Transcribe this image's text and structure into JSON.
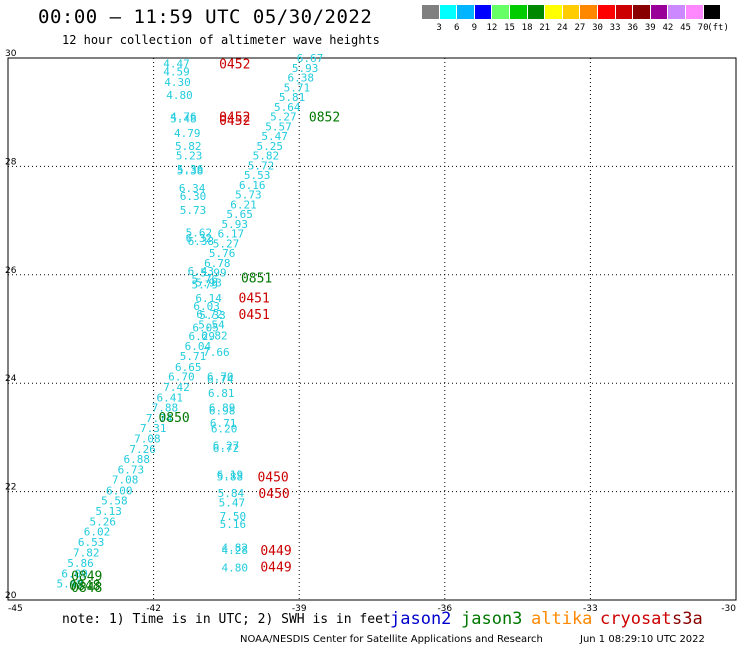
{
  "header": {
    "title": "00:00 – 11:59 UTC 05/30/2022",
    "subtitle": "12 hour collection of altimeter wave heights"
  },
  "legend": {
    "unit_label": "(ft)",
    "bins": [
      {
        "label": "3",
        "color": "#808080"
      },
      {
        "label": "6",
        "color": "#00ffff"
      },
      {
        "label": "9",
        "color": "#00b4ff"
      },
      {
        "label": "12",
        "color": "#0000ff"
      },
      {
        "label": "15",
        "color": "#66ff66"
      },
      {
        "label": "18",
        "color": "#00cc00"
      },
      {
        "label": "21",
        "color": "#008800"
      },
      {
        "label": "24",
        "color": "#ffff00"
      },
      {
        "label": "27",
        "color": "#ffcc00"
      },
      {
        "label": "30",
        "color": "#ff8800"
      },
      {
        "label": "33",
        "color": "#ff0000"
      },
      {
        "label": "36",
        "color": "#cc0000"
      },
      {
        "label": "39",
        "color": "#880000"
      },
      {
        "label": "42",
        "color": "#990099"
      },
      {
        "label": "45",
        "color": "#cc88ff"
      },
      {
        "label": "70",
        "color": "#ff88ff"
      },
      {
        "label": "",
        "color": "#000000"
      }
    ]
  },
  "map": {
    "lon_range": [
      -45,
      -30
    ],
    "lat_range": [
      20,
      30
    ],
    "lon_ticks": [
      "-45",
      "-42",
      "-39",
      "-36",
      "-33",
      "-30"
    ],
    "lat_ticks": [
      "20",
      "22",
      "24",
      "26",
      "28",
      "30"
    ],
    "grid": true
  },
  "colors": {
    "swh": "#22ccdd",
    "jason2": "#0000cc",
    "jason3": "#007700",
    "altika": "#ff8800",
    "cryosat": "#cc0000",
    "s3a": "#880000"
  },
  "swh_labels": [
    {
      "v": "4.47",
      "lon": -41.8,
      "lat": 29.9
    },
    {
      "v": "4.59",
      "lon": -41.8,
      "lat": 29.75
    },
    {
      "v": "4.30",
      "lon": -41.78,
      "lat": 29.56
    },
    {
      "v": "4.80",
      "lon": -41.74,
      "lat": 29.32
    },
    {
      "v": "4.76",
      "lon": -41.66,
      "lat": 28.92
    },
    {
      "v": "5.48",
      "lon": -41.66,
      "lat": 28.88
    },
    {
      "v": "4.79",
      "lon": -41.58,
      "lat": 28.62
    },
    {
      "v": "5.82",
      "lon": -41.56,
      "lat": 28.38
    },
    {
      "v": "5.23",
      "lon": -41.54,
      "lat": 28.2
    },
    {
      "v": "5.36",
      "lon": -41.52,
      "lat": 27.95
    },
    {
      "v": "5.38",
      "lon": -41.52,
      "lat": 27.92
    },
    {
      "v": "6.34",
      "lon": -41.48,
      "lat": 27.6
    },
    {
      "v": "6.30",
      "lon": -41.46,
      "lat": 27.45
    },
    {
      "v": "5.73",
      "lon": -41.46,
      "lat": 27.2
    },
    {
      "v": "5.62",
      "lon": -41.34,
      "lat": 26.78
    },
    {
      "v": "6.32",
      "lon": -41.34,
      "lat": 26.68
    },
    {
      "v": "6.38",
      "lon": -41.3,
      "lat": 26.62
    },
    {
      "v": "6.43",
      "lon": -41.3,
      "lat": 26.07
    },
    {
      "v": "5.76",
      "lon": -41.22,
      "lat": 25.92
    },
    {
      "v": "5.79",
      "lon": -41.22,
      "lat": 25.82
    },
    {
      "v": "6.14",
      "lon": -41.14,
      "lat": 25.57
    },
    {
      "v": "6.03",
      "lon": -41.18,
      "lat": 25.42
    },
    {
      "v": "6.72",
      "lon": -41.12,
      "lat": 25.28
    },
    {
      "v": "6.05",
      "lon": -41.2,
      "lat": 25.03
    },
    {
      "v": "6.29",
      "lon": -41.28,
      "lat": 24.87
    },
    {
      "v": "6.04",
      "lon": -41.36,
      "lat": 24.69
    },
    {
      "v": "5.71",
      "lon": -41.46,
      "lat": 24.5
    },
    {
      "v": "6.65",
      "lon": -41.56,
      "lat": 24.3
    },
    {
      "v": "6.70",
      "lon": -41.7,
      "lat": 24.12
    },
    {
      "v": "7.42",
      "lon": -41.8,
      "lat": 23.93
    },
    {
      "v": "6.41",
      "lon": -41.94,
      "lat": 23.74
    },
    {
      "v": "7.88",
      "lon": -42.04,
      "lat": 23.55
    },
    {
      "v": "7.74",
      "lon": -42.16,
      "lat": 23.36
    },
    {
      "v": "7.31",
      "lon": -42.28,
      "lat": 23.17
    },
    {
      "v": "7.08",
      "lon": -42.4,
      "lat": 22.98
    },
    {
      "v": "7.26",
      "lon": -42.5,
      "lat": 22.79
    },
    {
      "v": "6.88",
      "lon": -42.62,
      "lat": 22.6
    },
    {
      "v": "6.73",
      "lon": -42.74,
      "lat": 22.41
    },
    {
      "v": "7.08",
      "lon": -42.86,
      "lat": 22.22
    },
    {
      "v": "6.00",
      "lon": -42.98,
      "lat": 22.02
    },
    {
      "v": "5.58",
      "lon": -43.08,
      "lat": 21.84
    },
    {
      "v": "5.13",
      "lon": -43.2,
      "lat": 21.64
    },
    {
      "v": "5.26",
      "lon": -43.32,
      "lat": 21.45
    },
    {
      "v": "6.02",
      "lon": -43.44,
      "lat": 21.26
    },
    {
      "v": "6.53",
      "lon": -43.56,
      "lat": 21.07
    },
    {
      "v": "7.82",
      "lon": -43.66,
      "lat": 20.88
    },
    {
      "v": "5.86",
      "lon": -43.78,
      "lat": 20.68
    },
    {
      "v": "6.09",
      "lon": -43.9,
      "lat": 20.49
    },
    {
      "v": "5.48",
      "lon": -44.0,
      "lat": 20.3
    },
    {
      "v": "6.67",
      "lon": -39.05,
      "lat": 30.0
    },
    {
      "v": "5.93",
      "lon": -39.15,
      "lat": 29.82
    },
    {
      "v": "6.38",
      "lon": -39.24,
      "lat": 29.64
    },
    {
      "v": "5.71",
      "lon": -39.32,
      "lat": 29.46
    },
    {
      "v": "5.81",
      "lon": -39.42,
      "lat": 29.28
    },
    {
      "v": "5.64",
      "lon": -39.52,
      "lat": 29.1
    },
    {
      "v": "5.27",
      "lon": -39.6,
      "lat": 28.92
    },
    {
      "v": "5.57",
      "lon": -39.7,
      "lat": 28.74
    },
    {
      "v": "5.47",
      "lon": -39.78,
      "lat": 28.56
    },
    {
      "v": "5.25",
      "lon": -39.88,
      "lat": 28.38
    },
    {
      "v": "5.82",
      "lon": -39.96,
      "lat": 28.2
    },
    {
      "v": "5.72",
      "lon": -40.06,
      "lat": 28.02
    },
    {
      "v": "5.53",
      "lon": -40.14,
      "lat": 27.84
    },
    {
      "v": "6.16",
      "lon": -40.24,
      "lat": 27.66
    },
    {
      "v": "5.73",
      "lon": -40.32,
      "lat": 27.48
    },
    {
      "v": "6.21",
      "lon": -40.42,
      "lat": 27.3
    },
    {
      "v": "5.65",
      "lon": -40.5,
      "lat": 27.12
    },
    {
      "v": "5.93",
      "lon": -40.6,
      "lat": 26.94
    },
    {
      "v": "6.17",
      "lon": -40.68,
      "lat": 26.76
    },
    {
      "v": "5.27",
      "lon": -40.78,
      "lat": 26.58
    },
    {
      "v": "5.76",
      "lon": -40.86,
      "lat": 26.4
    },
    {
      "v": "6.78",
      "lon": -40.96,
      "lat": 26.22
    },
    {
      "v": "5.99",
      "lon": -41.04,
      "lat": 26.04
    },
    {
      "v": "5.93",
      "lon": -41.14,
      "lat": 25.86
    },
    {
      "v": "5.33",
      "lon": -41.06,
      "lat": 25.26
    },
    {
      "v": "5.54",
      "lon": -41.08,
      "lat": 25.08
    },
    {
      "v": "6.82",
      "lon": -41.02,
      "lat": 24.88
    },
    {
      "v": "7.66",
      "lon": -40.98,
      "lat": 24.58
    },
    {
      "v": "6.70",
      "lon": -40.9,
      "lat": 24.12
    },
    {
      "v": "6.74",
      "lon": -40.9,
      "lat": 24.08
    },
    {
      "v": "6.81",
      "lon": -40.88,
      "lat": 23.82
    },
    {
      "v": "6.89",
      "lon": -40.86,
      "lat": 23.55
    },
    {
      "v": "6.98",
      "lon": -40.86,
      "lat": 23.5
    },
    {
      "v": "6.71",
      "lon": -40.84,
      "lat": 23.27
    },
    {
      "v": "6.20",
      "lon": -40.82,
      "lat": 23.16
    },
    {
      "v": "6.27",
      "lon": -40.78,
      "lat": 22.85
    },
    {
      "v": "6.72",
      "lon": -40.78,
      "lat": 22.8
    },
    {
      "v": "6.19",
      "lon": -40.7,
      "lat": 22.32
    },
    {
      "v": "5.88",
      "lon": -40.7,
      "lat": 22.28
    },
    {
      "v": "5.84",
      "lon": -40.68,
      "lat": 21.97
    },
    {
      "v": "5.47",
      "lon": -40.66,
      "lat": 21.8
    },
    {
      "v": "7.50",
      "lon": -40.64,
      "lat": 21.55
    },
    {
      "v": "5.16",
      "lon": -40.64,
      "lat": 21.4
    },
    {
      "v": "4.82",
      "lon": -40.6,
      "lat": 20.97
    },
    {
      "v": "4.28",
      "lon": -40.6,
      "lat": 20.92
    },
    {
      "v": "4.80",
      "lon": -40.6,
      "lat": 20.6
    }
  ],
  "passes": [
    {
      "v": "0452",
      "sat": "cryosat",
      "lon": -40.65,
      "lat": 29.9
    },
    {
      "v": "0452",
      "sat": "cryosat",
      "lon": -40.65,
      "lat": 28.92
    },
    {
      "v": "0452",
      "sat": "cryosat",
      "lon": -40.65,
      "lat": 28.86
    },
    {
      "v": "0852",
      "sat": "jason3",
      "lon": -38.8,
      "lat": 28.92
    },
    {
      "v": "0851",
      "sat": "jason3",
      "lon": -40.2,
      "lat": 25.95
    },
    {
      "v": "0451",
      "sat": "cryosat",
      "lon": -40.25,
      "lat": 25.58
    },
    {
      "v": "0451",
      "sat": "cryosat",
      "lon": -40.25,
      "lat": 25.28
    },
    {
      "v": "0850",
      "sat": "jason3",
      "lon": -41.9,
      "lat": 23.38
    },
    {
      "v": "0450",
      "sat": "cryosat",
      "lon": -39.86,
      "lat": 22.28
    },
    {
      "v": "0450",
      "sat": "cryosat",
      "lon": -39.84,
      "lat": 21.97
    },
    {
      "v": "0449",
      "sat": "cryosat",
      "lon": -39.8,
      "lat": 20.92
    },
    {
      "v": "0449",
      "sat": "cryosat",
      "lon": -39.8,
      "lat": 20.62
    },
    {
      "v": "0849",
      "sat": "jason3",
      "lon": -43.7,
      "lat": 20.45
    },
    {
      "v": "0848",
      "sat": "jason3",
      "lon": -43.74,
      "lat": 20.28
    },
    {
      "v": "0848",
      "sat": "jason3",
      "lon": -43.7,
      "lat": 20.24
    }
  ],
  "footer": {
    "note": "note: 1) Time is in UTC; 2) SWH is in feet",
    "missions": {
      "jason2": "jason2",
      "jason3": "jason3",
      "altika": "altika",
      "cryosat": "cryosat",
      "s3a": "s3a"
    },
    "credit": "NOAA/NESDIS Center for Satellite Applications and Research",
    "timestamp": "Jun  1 08:29:10 UTC 2022"
  }
}
